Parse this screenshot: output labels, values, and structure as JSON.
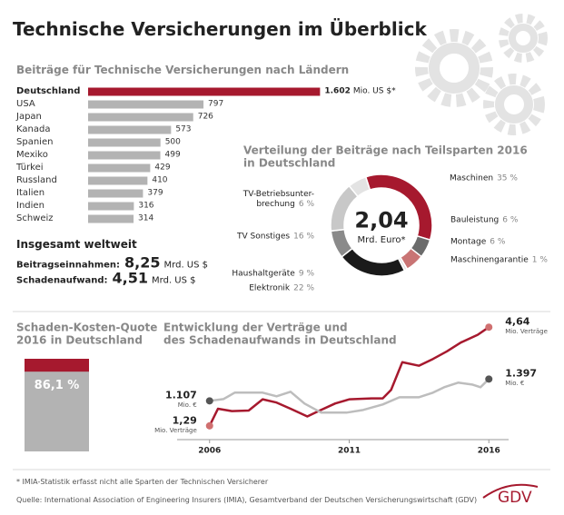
{
  "title": "Technische Versicherungen im Überblick",
  "chart_data": [
    {
      "type": "bar",
      "orientation": "horizontal",
      "title": "Beiträge für Technische Versicherungen nach Ländern",
      "categories": [
        "Deutschland",
        "USA",
        "Japan",
        "Kanada",
        "Spanien",
        "Mexiko",
        "Türkei",
        "Russland",
        "Italien",
        "Indien",
        "Schweiz"
      ],
      "values": [
        1602,
        797,
        726,
        573,
        500,
        499,
        429,
        410,
        379,
        316,
        314
      ],
      "value_labels": [
        "1.602",
        "797",
        "726",
        "573",
        "500",
        "499",
        "429",
        "410",
        "379",
        "316",
        "314"
      ],
      "unit_label": "Mio. US $*",
      "colors": [
        "#a6192e",
        "#b3b3b3",
        "#b3b3b3",
        "#b3b3b3",
        "#b3b3b3",
        "#b3b3b3",
        "#b3b3b3",
        "#b3b3b3",
        "#b3b3b3",
        "#b3b3b3",
        "#b3b3b3"
      ],
      "xlim": [
        0,
        1700
      ]
    },
    {
      "type": "pie",
      "donut": true,
      "title": "Verteilung der Beiträge nach Teilsparten 2016\nin Deutschland",
      "center_value": "2,04",
      "center_unit": "Mrd. Euro*",
      "categories": [
        "Maschinen",
        "Bauleistung",
        "Montage",
        "Maschinengarantie",
        "Elektronik",
        "Haushaltgeräte",
        "TV Sonstiges",
        "TV-Betriebsunter-\nbrechung"
      ],
      "values": [
        35,
        6,
        6,
        1,
        22,
        9,
        16,
        6
      ],
      "value_labels": [
        "35 %",
        "6 %",
        "6 %",
        "1 %",
        "22 %",
        "9 %",
        "16 %",
        "6 %"
      ],
      "colors": [
        "#a6192e",
        "#6b6b6b",
        "#c97474",
        "#e6e6e6",
        "#1a1a1a",
        "#8a8a8a",
        "#c8c8c8",
        "#e3e3e3"
      ]
    },
    {
      "type": "bar",
      "orientation": "vertical",
      "title": "Schaden-Kosten-Quote\n2016 in Deutschland",
      "values": [
        86.1
      ],
      "value_labels": [
        "86,1 %"
      ],
      "color": "#b3b3b3",
      "background_color": "#a6192e",
      "ylim": [
        0,
        100
      ]
    },
    {
      "type": "line",
      "title": "Entwicklung der Verträge und\ndes Schadenaufwands in Deutschland",
      "xlim": [
        2005,
        2017
      ],
      "xticks": [
        2006,
        2011,
        2016
      ],
      "ylim": [
        1.1,
        4.8
      ],
      "y2lim": [
        0.7,
        2.15
      ],
      "series": [
        {
          "unit": "Mio. Verträge",
          "color": "#a6192e",
          "marker_color": "#d07070",
          "x": [
            2006,
            2006.3,
            2006.8,
            2007.4,
            2007.9,
            2008.4,
            2008.9,
            2009.5,
            2009.9,
            2010.5,
            2011,
            2011.8,
            2012.2,
            2012.5,
            2012.9,
            2013.5,
            2014,
            2014.5,
            2015,
            2015.6,
            2016
          ],
          "values": [
            1.29,
            1.87,
            1.79,
            1.81,
            2.19,
            2.08,
            1.87,
            1.61,
            1.79,
            2.05,
            2.19,
            2.22,
            2.22,
            2.51,
            3.45,
            3.33,
            3.56,
            3.82,
            4.12,
            4.38,
            4.64
          ],
          "value_labels": [
            "1,29",
            null,
            null,
            null,
            null,
            null,
            null,
            null,
            null,
            null,
            null,
            null,
            null,
            null,
            null,
            null,
            null,
            null,
            null,
            null,
            "4,64"
          ]
        },
        {
          "unit": "Mio. €",
          "axis": "y2",
          "color": "#bdbdbd",
          "marker_color": "#555555",
          "x": [
            2006,
            2006.5,
            2006.9,
            2007.4,
            2007.9,
            2008.4,
            2008.9,
            2009.4,
            2010,
            2010.9,
            2011.5,
            2012.2,
            2012.8,
            2013.5,
            2014,
            2014.4,
            2014.9,
            2015.4,
            2015.7,
            2016
          ],
          "values": [
            1.107,
            1.131,
            1.216,
            1.216,
            1.216,
            1.167,
            1.228,
            1.071,
            0.95,
            0.95,
            0.986,
            1.059,
            1.155,
            1.155,
            1.216,
            1.288,
            1.349,
            1.324,
            1.288,
            1.397
          ],
          "value_labels": [
            "1.107",
            null,
            null,
            null,
            null,
            null,
            null,
            null,
            null,
            null,
            null,
            null,
            null,
            null,
            null,
            null,
            null,
            null,
            null,
            "1.397"
          ]
        }
      ]
    }
  ],
  "totals": {
    "title": "Insgesamt weltweit",
    "rows": [
      {
        "label": "Beitragseinnahmen:",
        "value": "8,25",
        "unit": "Mrd. US $"
      },
      {
        "label": "Schadenaufwand:",
        "value": "4,51",
        "unit": "Mrd. US $"
      }
    ]
  },
  "footnote": "* IMIA-Statistik erfasst nicht alle Sparten der Technischen Versicherer",
  "source": "Quelle: International Association of Engineering Insurers (IMIA), Gesamtverband der Deutschen Versicherungswirtschaft (GDV)",
  "logo": "GDV"
}
